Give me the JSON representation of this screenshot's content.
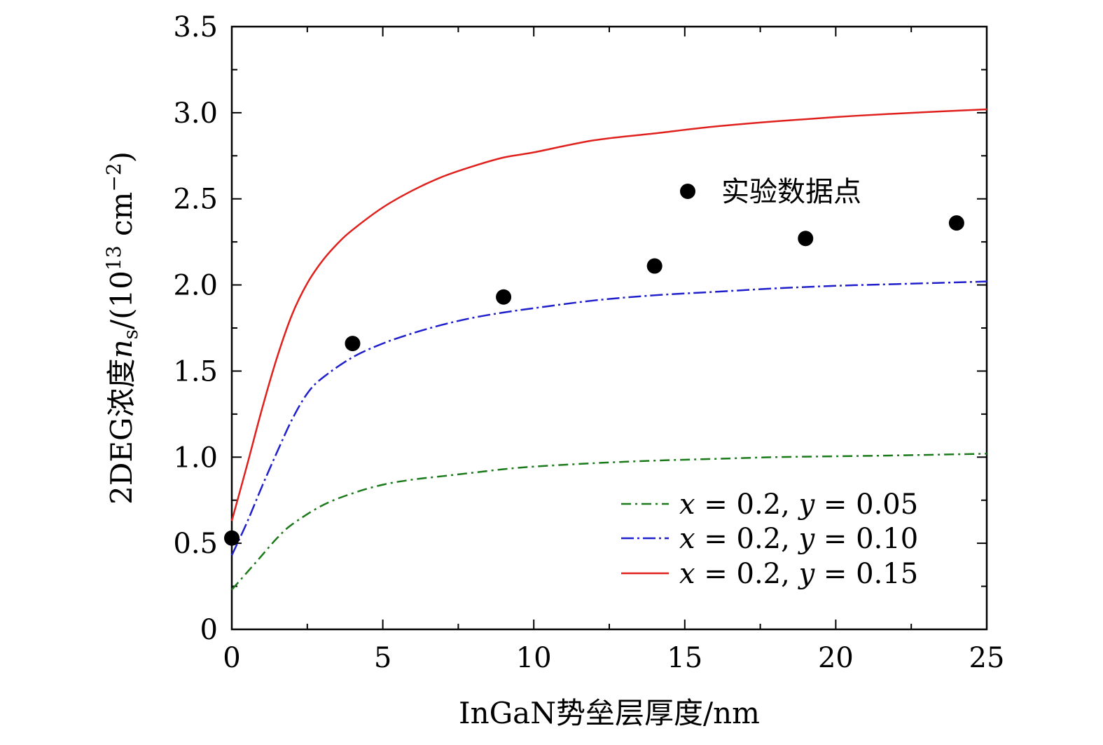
{
  "chart_data": {
    "type": "line",
    "xlabel": "InGaN势垒层厚度/nm",
    "ylabel": {
      "prefix": "2DEG浓度",
      "var": "n",
      "sub": "s",
      "unit_open": "/(10",
      "unit_exp": "13",
      "unit_mid": " cm",
      "unit_exp2": "−2",
      "unit_close": ")"
    },
    "xlim": [
      0,
      25
    ],
    "ylim": [
      0,
      3.5
    ],
    "xticks": [
      0,
      5,
      10,
      15,
      20,
      25
    ],
    "xtick_labels": [
      "0",
      "5",
      "10",
      "15",
      "20",
      "25"
    ],
    "yticks": [
      0,
      0.5,
      1.0,
      1.5,
      2.0,
      2.5,
      3.0,
      3.5
    ],
    "ytick_labels": [
      "0",
      "0.5",
      "1.0",
      "1.5",
      "2.0",
      "2.5",
      "3.0",
      "3.5"
    ],
    "grid": false,
    "legend_position": "bottom-right",
    "series": [
      {
        "name": "x = 0.2, y = 0.05",
        "legend": {
          "x": "x",
          "eq1": " = 0.2, ",
          "y": "y",
          "eq2": " = 0.05"
        },
        "color": "#1a7a1a",
        "style": "dash-dot",
        "x": [
          0,
          0.5,
          1,
          1.5,
          2,
          3,
          4,
          5,
          6,
          7,
          8,
          9,
          10,
          12,
          14,
          16,
          18,
          20,
          22,
          25
        ],
        "y": [
          0.23,
          0.33,
          0.43,
          0.53,
          0.61,
          0.72,
          0.79,
          0.84,
          0.87,
          0.89,
          0.91,
          0.93,
          0.945,
          0.965,
          0.98,
          0.99,
          1.0,
          1.005,
          1.01,
          1.02
        ]
      },
      {
        "name": "x = 0.2, y = 0.10",
        "legend": {
          "x": "x",
          "eq1": " = 0.2, ",
          "y": "y",
          "eq2": " = 0.10"
        },
        "color": "#1f1fcc",
        "style": "dash-dot-long",
        "x": [
          0,
          0.5,
          1,
          1.5,
          2,
          2.5,
          3,
          4,
          5,
          6,
          7,
          8,
          9,
          10,
          12,
          14,
          16,
          18,
          20,
          22,
          25
        ],
        "y": [
          0.43,
          0.62,
          0.83,
          1.03,
          1.22,
          1.37,
          1.46,
          1.58,
          1.66,
          1.72,
          1.77,
          1.81,
          1.84,
          1.865,
          1.91,
          1.94,
          1.96,
          1.98,
          1.995,
          2.005,
          2.02
        ]
      },
      {
        "name": "x = 0.2, y = 0.15",
        "legend": {
          "x": "x",
          "eq1": " = 0.2, ",
          "y": "y",
          "eq2": " = 0.15"
        },
        "color": "#e0201c",
        "style": "solid",
        "x": [
          0,
          0.5,
          1,
          1.5,
          2,
          2.5,
          3,
          3.5,
          4,
          5,
          6,
          7,
          8,
          9,
          10,
          12,
          14,
          16,
          18,
          20,
          22,
          25
        ],
        "y": [
          0.63,
          0.95,
          1.28,
          1.58,
          1.83,
          2.01,
          2.14,
          2.24,
          2.32,
          2.45,
          2.55,
          2.63,
          2.69,
          2.74,
          2.77,
          2.84,
          2.88,
          2.92,
          2.95,
          2.975,
          2.995,
          3.02
        ]
      }
    ],
    "points": {
      "name": "实验数据点",
      "color": "#000000",
      "x": [
        0,
        4,
        9,
        14,
        19,
        24
      ],
      "y": [
        0.53,
        1.66,
        1.93,
        2.11,
        2.27,
        2.36
      ]
    }
  }
}
